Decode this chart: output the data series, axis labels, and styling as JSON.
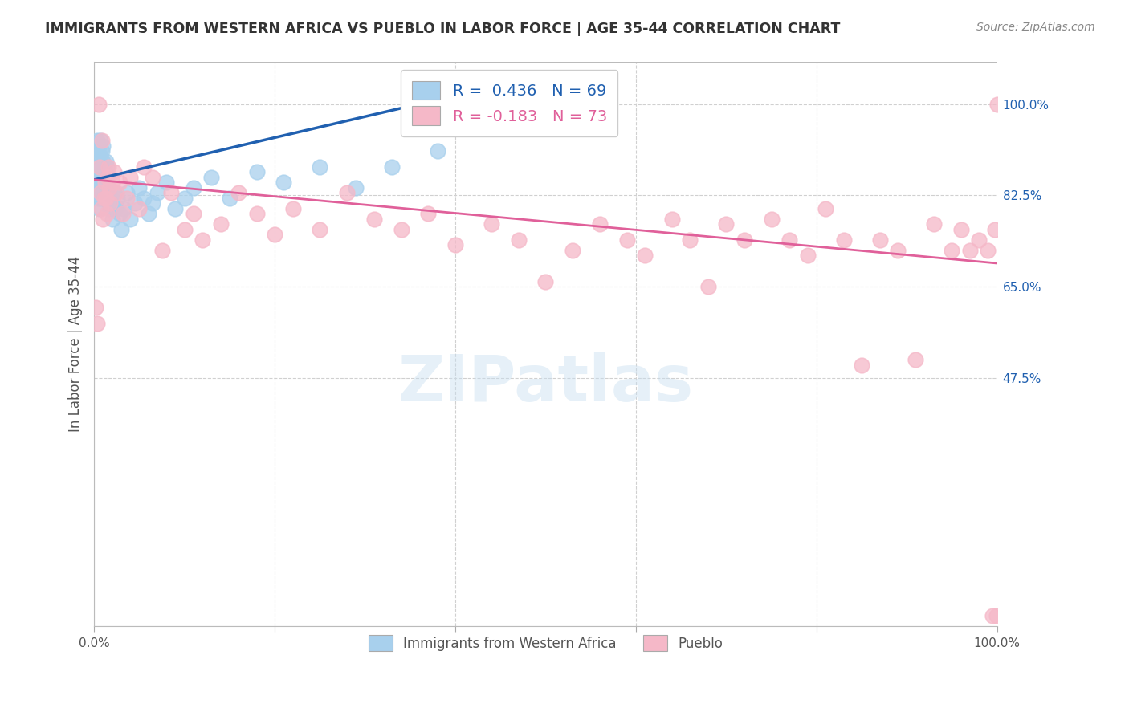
{
  "title": "IMMIGRANTS FROM WESTERN AFRICA VS PUEBLO IN LABOR FORCE | AGE 35-44 CORRELATION CHART",
  "source": "Source: ZipAtlas.com",
  "ylabel": "In Labor Force | Age 35-44",
  "yticks_labels": [
    "100.0%",
    "82.5%",
    "65.0%",
    "47.5%"
  ],
  "ytick_vals": [
    1.0,
    0.825,
    0.65,
    0.475
  ],
  "xrange": [
    0.0,
    1.0
  ],
  "yrange": [
    0.0,
    1.08
  ],
  "blue_R": 0.436,
  "blue_N": 69,
  "pink_R": -0.183,
  "pink_N": 73,
  "blue_color": "#a8d0ed",
  "pink_color": "#f5b8c8",
  "blue_line_color": "#2060b0",
  "pink_line_color": "#e0609a",
  "legend_label_blue": "Immigrants from Western Africa",
  "legend_label_pink": "Pueblo",
  "watermark": "ZIPatlas",
  "blue_points_x": [
    0.002,
    0.003,
    0.003,
    0.004,
    0.004,
    0.004,
    0.005,
    0.005,
    0.005,
    0.005,
    0.006,
    0.006,
    0.006,
    0.007,
    0.007,
    0.007,
    0.007,
    0.008,
    0.008,
    0.008,
    0.009,
    0.009,
    0.009,
    0.009,
    0.01,
    0.01,
    0.01,
    0.01,
    0.011,
    0.011,
    0.012,
    0.012,
    0.013,
    0.013,
    0.014,
    0.014,
    0.015,
    0.015,
    0.016,
    0.017,
    0.018,
    0.019,
    0.02,
    0.022,
    0.024,
    0.026,
    0.028,
    0.03,
    0.033,
    0.036,
    0.04,
    0.045,
    0.05,
    0.055,
    0.06,
    0.065,
    0.07,
    0.08,
    0.09,
    0.1,
    0.11,
    0.13,
    0.15,
    0.18,
    0.21,
    0.25,
    0.29,
    0.33,
    0.38
  ],
  "blue_points_y": [
    0.88,
    0.9,
    0.93,
    0.85,
    0.88,
    0.91,
    0.82,
    0.85,
    0.88,
    0.92,
    0.8,
    0.83,
    0.87,
    0.85,
    0.88,
    0.9,
    0.93,
    0.82,
    0.85,
    0.88,
    0.84,
    0.86,
    0.88,
    0.91,
    0.83,
    0.86,
    0.89,
    0.92,
    0.85,
    0.88,
    0.84,
    0.87,
    0.86,
    0.89,
    0.85,
    0.88,
    0.82,
    0.85,
    0.83,
    0.81,
    0.8,
    0.82,
    0.78,
    0.83,
    0.8,
    0.82,
    0.79,
    0.76,
    0.8,
    0.83,
    0.78,
    0.81,
    0.84,
    0.82,
    0.79,
    0.81,
    0.83,
    0.85,
    0.8,
    0.82,
    0.84,
    0.86,
    0.82,
    0.87,
    0.85,
    0.88,
    0.84,
    0.88,
    0.91
  ],
  "pink_points_x": [
    0.002,
    0.003,
    0.005,
    0.006,
    0.007,
    0.008,
    0.009,
    0.01,
    0.011,
    0.012,
    0.013,
    0.014,
    0.015,
    0.016,
    0.017,
    0.018,
    0.02,
    0.022,
    0.025,
    0.028,
    0.032,
    0.036,
    0.04,
    0.05,
    0.055,
    0.065,
    0.075,
    0.085,
    0.1,
    0.11,
    0.12,
    0.14,
    0.16,
    0.18,
    0.2,
    0.22,
    0.25,
    0.28,
    0.31,
    0.34,
    0.37,
    0.4,
    0.44,
    0.47,
    0.5,
    0.53,
    0.56,
    0.59,
    0.61,
    0.64,
    0.66,
    0.68,
    0.7,
    0.72,
    0.75,
    0.77,
    0.79,
    0.81,
    0.83,
    0.85,
    0.87,
    0.89,
    0.91,
    0.93,
    0.95,
    0.96,
    0.97,
    0.98,
    0.99,
    0.995,
    0.998,
    0.999,
    1.0
  ],
  "pink_points_y": [
    0.61,
    0.58,
    1.0,
    0.88,
    0.83,
    0.8,
    0.93,
    0.78,
    0.82,
    0.85,
    0.82,
    0.79,
    0.86,
    0.88,
    0.84,
    0.81,
    0.85,
    0.87,
    0.83,
    0.85,
    0.79,
    0.82,
    0.86,
    0.8,
    0.88,
    0.86,
    0.72,
    0.83,
    0.76,
    0.79,
    0.74,
    0.77,
    0.83,
    0.79,
    0.75,
    0.8,
    0.76,
    0.83,
    0.78,
    0.76,
    0.79,
    0.73,
    0.77,
    0.74,
    0.66,
    0.72,
    0.77,
    0.74,
    0.71,
    0.78,
    0.74,
    0.65,
    0.77,
    0.74,
    0.78,
    0.74,
    0.71,
    0.8,
    0.74,
    0.5,
    0.74,
    0.72,
    0.51,
    0.77,
    0.72,
    0.76,
    0.72,
    0.74,
    0.72,
    0.02,
    0.76,
    0.02,
    1.0
  ]
}
